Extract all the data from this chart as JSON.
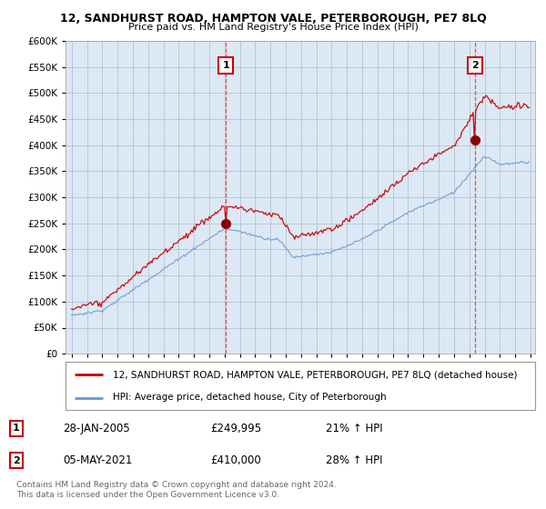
{
  "title": "12, SANDHURST ROAD, HAMPTON VALE, PETERBOROUGH, PE7 8LQ",
  "subtitle": "Price paid vs. HM Land Registry's House Price Index (HPI)",
  "red_label": "12, SANDHURST ROAD, HAMPTON VALE, PETERBOROUGH, PE7 8LQ (detached house)",
  "blue_label": "HPI: Average price, detached house, City of Peterborough",
  "sale1_date": "28-JAN-2005",
  "sale1_price": 249995,
  "sale1_pct": "21% ↑ HPI",
  "sale2_date": "05-MAY-2021",
  "sale2_price": 410000,
  "sale2_pct": "28% ↑ HPI",
  "sale1_year": 2005.08,
  "sale2_year": 2021.37,
  "ylim": [
    0,
    600000
  ],
  "xlim": [
    1994.6,
    2025.3
  ],
  "footer": "Contains HM Land Registry data © Crown copyright and database right 2024.\nThis data is licensed under the Open Government Licence v3.0.",
  "background_color": "#ffffff",
  "plot_bg": "#dce9f5",
  "grid_color": "#aabbcc",
  "red_color": "#cc0000",
  "blue_color": "#6699cc",
  "dashed_color": "#cc3333"
}
